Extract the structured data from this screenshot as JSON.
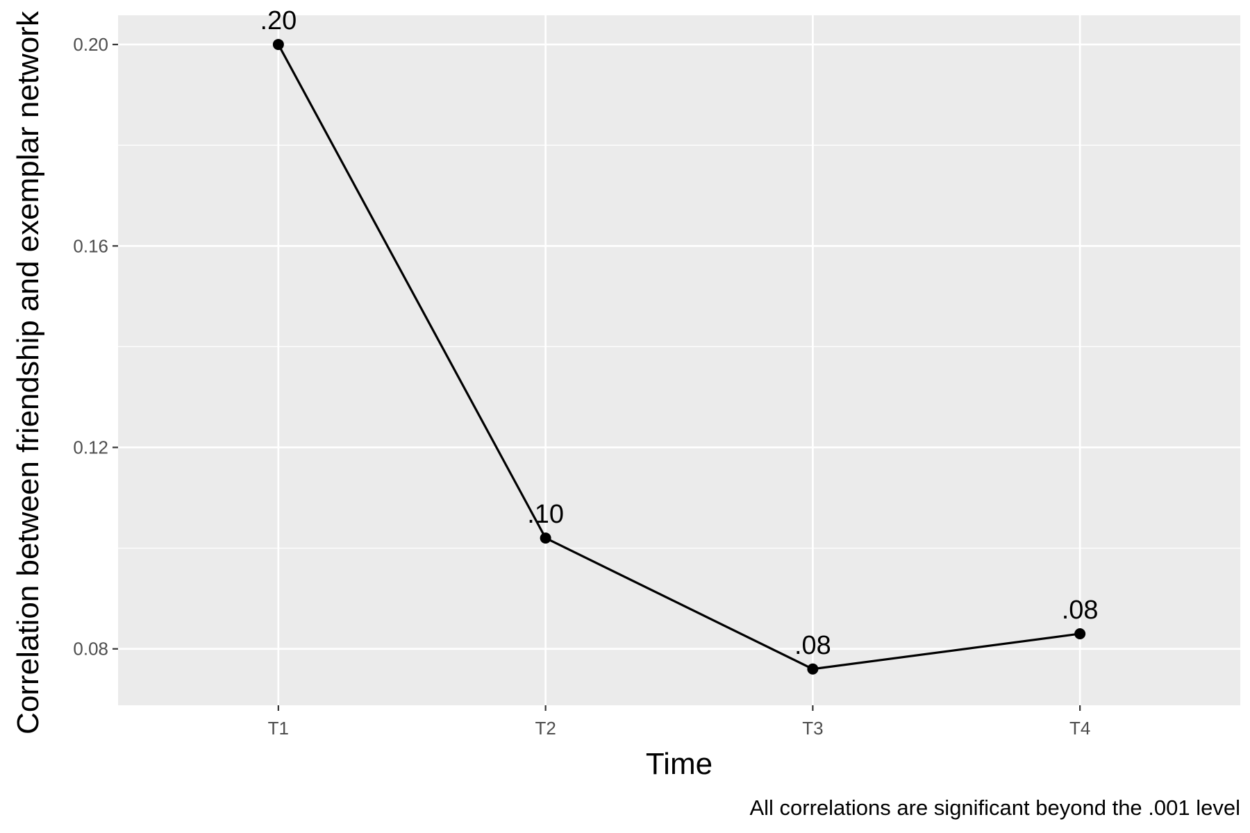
{
  "chart_data": {
    "type": "line",
    "categories": [
      "T1",
      "T2",
      "T3",
      "T4"
    ],
    "series": [
      {
        "values": [
          0.2,
          0.102,
          0.076,
          0.083
        ],
        "labels": [
          ".20",
          ".10",
          ".08",
          ".08"
        ]
      }
    ],
    "xlabel": "Time",
    "ylabel": "Correlation between friendship and exemplar network",
    "caption": "All correlations are significant beyond the .001 level",
    "ylim": [
      0.0688,
      0.2058
    ],
    "yticks": [
      0.08,
      0.12,
      0.16,
      0.2
    ],
    "ytick_labels": [
      "0.08",
      "0.12",
      "0.16",
      "0.20"
    ],
    "grid": true,
    "colors": {
      "panel": "#EBEBEB",
      "grid": "#FFFFFF",
      "line": "#000000",
      "point": "#000000",
      "tick_text": "#4D4D4D"
    }
  }
}
